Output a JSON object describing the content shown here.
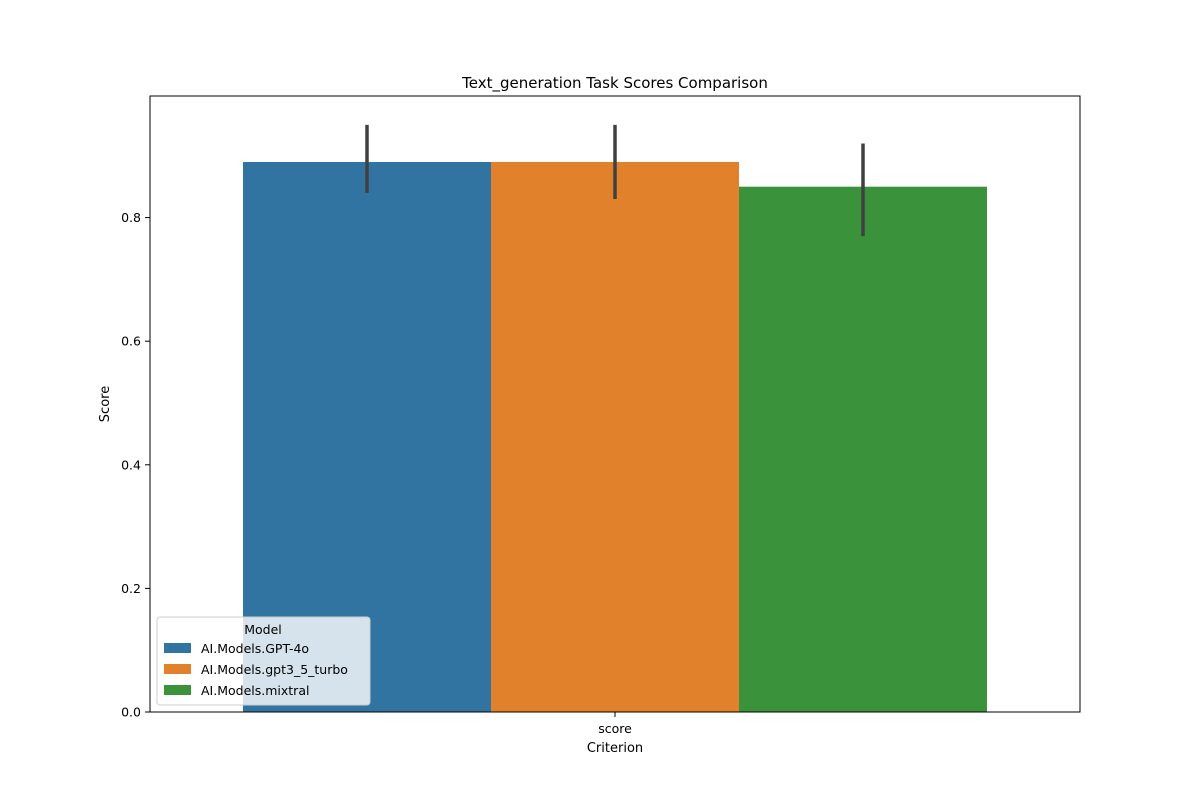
{
  "chart_data": {
    "type": "bar",
    "title": "Text_generation Task Scores Comparison",
    "xlabel": "Criterion",
    "ylabel": "Score",
    "categories": [
      "score"
    ],
    "ylim": [
      0,
      1.0
    ],
    "yticks": [
      "0.0",
      "0.2",
      "0.4",
      "0.6",
      "0.8"
    ],
    "grid": false,
    "legend": {
      "title": "Model",
      "placement": "lower-left"
    },
    "series": [
      {
        "name": "AI.Models.GPT-4o",
        "values": [
          0.89
        ],
        "error": [
          [
            0.84,
            0.95
          ]
        ],
        "color": "#3274a1"
      },
      {
        "name": "AI.Models.gpt3_5_turbo",
        "values": [
          0.89
        ],
        "error": [
          [
            0.83,
            0.95
          ]
        ],
        "color": "#e1812c"
      },
      {
        "name": "AI.Models.mixtral",
        "values": [
          0.85
        ],
        "error": [
          [
            0.77,
            0.92
          ]
        ],
        "color": "#3a923a"
      }
    ]
  }
}
